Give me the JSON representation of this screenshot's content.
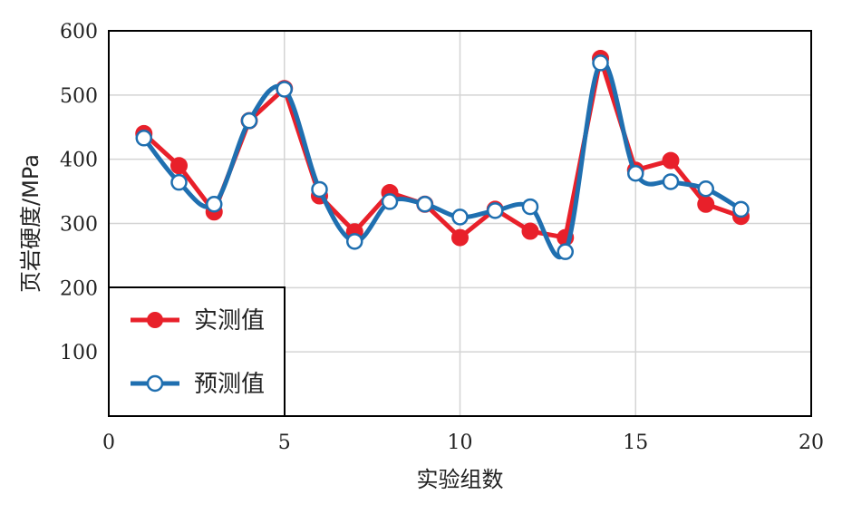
{
  "chart_data": {
    "type": "line",
    "xlabel": "实验组数",
    "ylabel": "页岩硬度/MPa",
    "xlim": [
      0,
      20
    ],
    "ylim": [
      0,
      600
    ],
    "xticks": [
      0,
      5,
      10,
      15,
      20
    ],
    "yticks": [
      100,
      200,
      300,
      400,
      500,
      600
    ],
    "grid": true,
    "legend_position": "bottom-left",
    "colors": {
      "measured": "#e8202a",
      "predicted": "#1f6fb0"
    },
    "series": [
      {
        "name": "实测值",
        "marker": "filled-circle",
        "points": [
          [
            1,
            440
          ],
          [
            2,
            390
          ],
          [
            3,
            318
          ],
          [
            4,
            460
          ],
          [
            5,
            510
          ],
          [
            6,
            343
          ],
          [
            7,
            287
          ],
          [
            8,
            348
          ],
          [
            9,
            330
          ],
          [
            10,
            278
          ],
          [
            11,
            322
          ],
          [
            12,
            288
          ],
          [
            13,
            278
          ],
          [
            14,
            557
          ],
          [
            15,
            383
          ],
          [
            16,
            398
          ],
          [
            17,
            330
          ],
          [
            18,
            311
          ]
        ]
      },
      {
        "name": "预测值",
        "marker": "hollow-circle",
        "points": [
          [
            1,
            433
          ],
          [
            2,
            364
          ],
          [
            3,
            330
          ],
          [
            4,
            460
          ],
          [
            5,
            509
          ],
          [
            6,
            353
          ],
          [
            7,
            272
          ],
          [
            8,
            334
          ],
          [
            9,
            330
          ],
          [
            10,
            310
          ],
          [
            11,
            320
          ],
          [
            12,
            326
          ],
          [
            13,
            256
          ],
          [
            14,
            550
          ],
          [
            15,
            378
          ],
          [
            16,
            365
          ],
          [
            17,
            354
          ],
          [
            18,
            322
          ]
        ]
      }
    ]
  }
}
